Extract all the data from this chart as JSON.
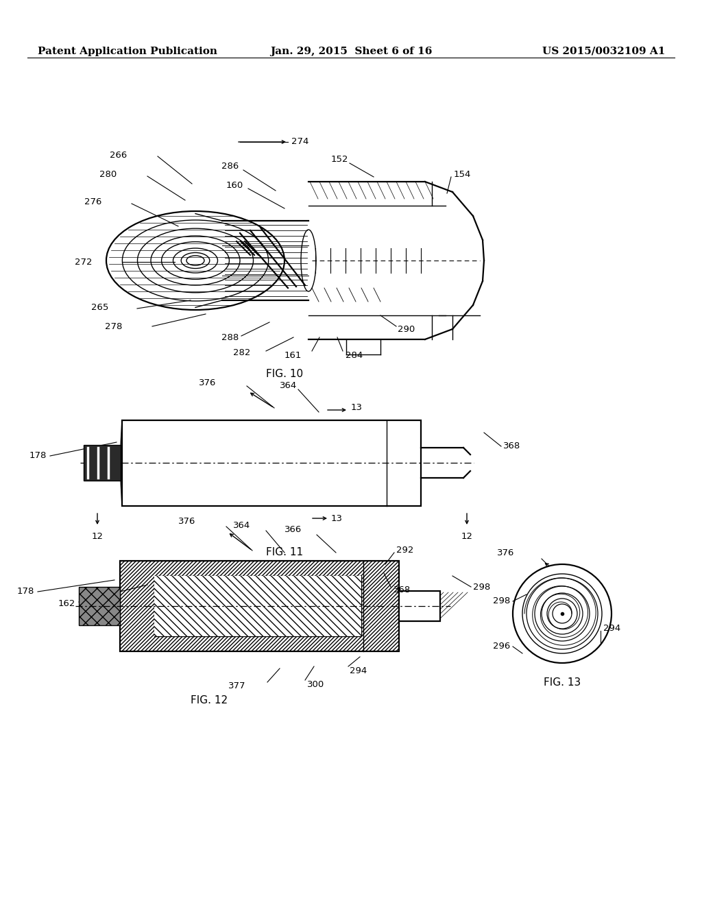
{
  "background_color": "#ffffff",
  "header_left": "Patent Application Publication",
  "header_center": "Jan. 29, 2015  Sheet 6 of 16",
  "header_right": "US 2015/0032109 A1",
  "fig10_caption": "FIG. 10",
  "fig11_caption": "FIG. 11",
  "fig12_caption": "FIG. 12",
  "fig13_caption": "FIG. 13"
}
